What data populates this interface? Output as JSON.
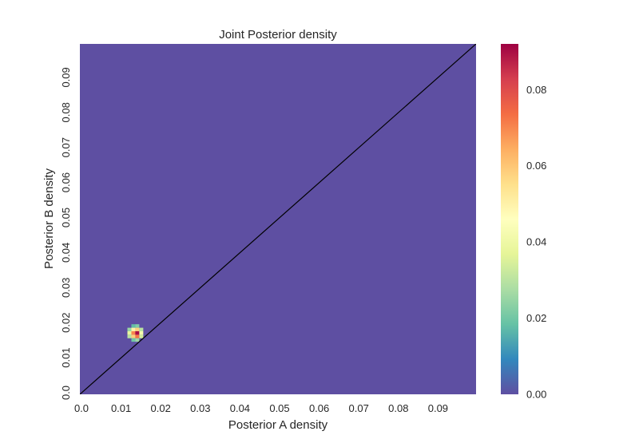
{
  "chart_data": {
    "type": "heatmap",
    "title": "Joint Posterior density",
    "xlabel": "Posterior A density",
    "ylabel": "Posterior B density",
    "xlim": [
      0.0,
      0.1
    ],
    "ylim": [
      0.0,
      0.1
    ],
    "x_ticks": [
      "0.0",
      "0.01",
      "0.02",
      "0.03",
      "0.04",
      "0.05",
      "0.06",
      "0.07",
      "0.08",
      "0.09"
    ],
    "y_ticks": [
      "0.0",
      "0.01",
      "0.02",
      "0.03",
      "0.04",
      "0.05",
      "0.06",
      "0.07",
      "0.08",
      "0.09"
    ],
    "colorbar": {
      "ticks": [
        "0.00",
        "0.02",
        "0.04",
        "0.06",
        "0.08"
      ],
      "min": 0.0,
      "max": 0.092,
      "colormap": "Spectral_r"
    },
    "background_value": 0.0,
    "cells": [
      {
        "x": 0.0135,
        "y": 0.0195,
        "v": 0.018
      },
      {
        "x": 0.0145,
        "y": 0.0195,
        "v": 0.022
      },
      {
        "x": 0.0125,
        "y": 0.0185,
        "v": 0.025
      },
      {
        "x": 0.0135,
        "y": 0.0185,
        "v": 0.05
      },
      {
        "x": 0.0145,
        "y": 0.0185,
        "v": 0.058
      },
      {
        "x": 0.0155,
        "y": 0.0185,
        "v": 0.03
      },
      {
        "x": 0.0125,
        "y": 0.0175,
        "v": 0.038
      },
      {
        "x": 0.0135,
        "y": 0.0175,
        "v": 0.07
      },
      {
        "x": 0.0145,
        "y": 0.0175,
        "v": 0.09
      },
      {
        "x": 0.0155,
        "y": 0.0175,
        "v": 0.042
      },
      {
        "x": 0.0125,
        "y": 0.0165,
        "v": 0.03
      },
      {
        "x": 0.0135,
        "y": 0.0165,
        "v": 0.058
      },
      {
        "x": 0.0145,
        "y": 0.0165,
        "v": 0.072
      },
      {
        "x": 0.0155,
        "y": 0.0165,
        "v": 0.034
      },
      {
        "x": 0.0135,
        "y": 0.0155,
        "v": 0.02
      },
      {
        "x": 0.0145,
        "y": 0.0155,
        "v": 0.026
      }
    ],
    "reference_line": {
      "from": [
        0.0,
        0.0
      ],
      "to": [
        0.1,
        0.1
      ],
      "color": "#000000"
    }
  },
  "colors": {
    "background_cell": "#5e4fa2",
    "reference_line": "#000000",
    "text": "#262626"
  }
}
